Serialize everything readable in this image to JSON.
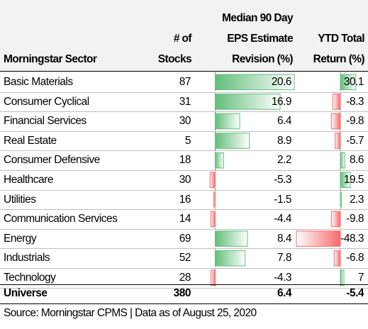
{
  "table": {
    "headers": {
      "sector": "Morningstar Sector",
      "stocks_line1": "# of",
      "stocks_line2": "Stocks",
      "eps_line1": "Median 90 Day",
      "eps_line2": "EPS Estimate",
      "eps_line3": "Revision (%)",
      "ytd_line1": "YTD Total",
      "ytd_line2": "Return (%)"
    },
    "total": {
      "label": "Universe",
      "stocks": "380",
      "eps": "6.4",
      "ytd": "-5.4"
    },
    "source": "Source: Morningstar CPMS | Data as of August 25, 2020"
  },
  "colors": {
    "positive": "#63be7b",
    "negative": "#f8696b",
    "header_bg": "#f2f2f2"
  },
  "chart_data": {
    "type": "table",
    "columns": [
      "Morningstar Sector",
      "# of Stocks",
      "Median 90 Day EPS Estimate Revision (%)",
      "YTD Total Return (%)"
    ],
    "rows": [
      {
        "sector": "Basic Materials",
        "stocks": 87,
        "eps": 20.6,
        "ytd": 30.1
      },
      {
        "sector": "Consumer Cyclical",
        "stocks": 31,
        "eps": 16.9,
        "ytd": -8.3
      },
      {
        "sector": "Financial Services",
        "stocks": 30,
        "eps": 6.4,
        "ytd": -9.8
      },
      {
        "sector": "Real Estate",
        "stocks": 5,
        "eps": 8.9,
        "ytd": -5.7
      },
      {
        "sector": "Consumer Defensive",
        "stocks": 18,
        "eps": 2.2,
        "ytd": 8.6
      },
      {
        "sector": "Healthcare",
        "stocks": 30,
        "eps": -5.3,
        "ytd": 19.5
      },
      {
        "sector": "Utilities",
        "stocks": 16,
        "eps": -1.5,
        "ytd": 2.3
      },
      {
        "sector": "Communication Services",
        "stocks": 14,
        "eps": -4.4,
        "ytd": -9.8
      },
      {
        "sector": "Energy",
        "stocks": 69,
        "eps": 8.4,
        "ytd": -48.3
      },
      {
        "sector": "Industrials",
        "stocks": 52,
        "eps": 7.8,
        "ytd": -6.8
      },
      {
        "sector": "Technology",
        "stocks": 28,
        "eps": -4.3,
        "ytd": 7
      }
    ]
  }
}
